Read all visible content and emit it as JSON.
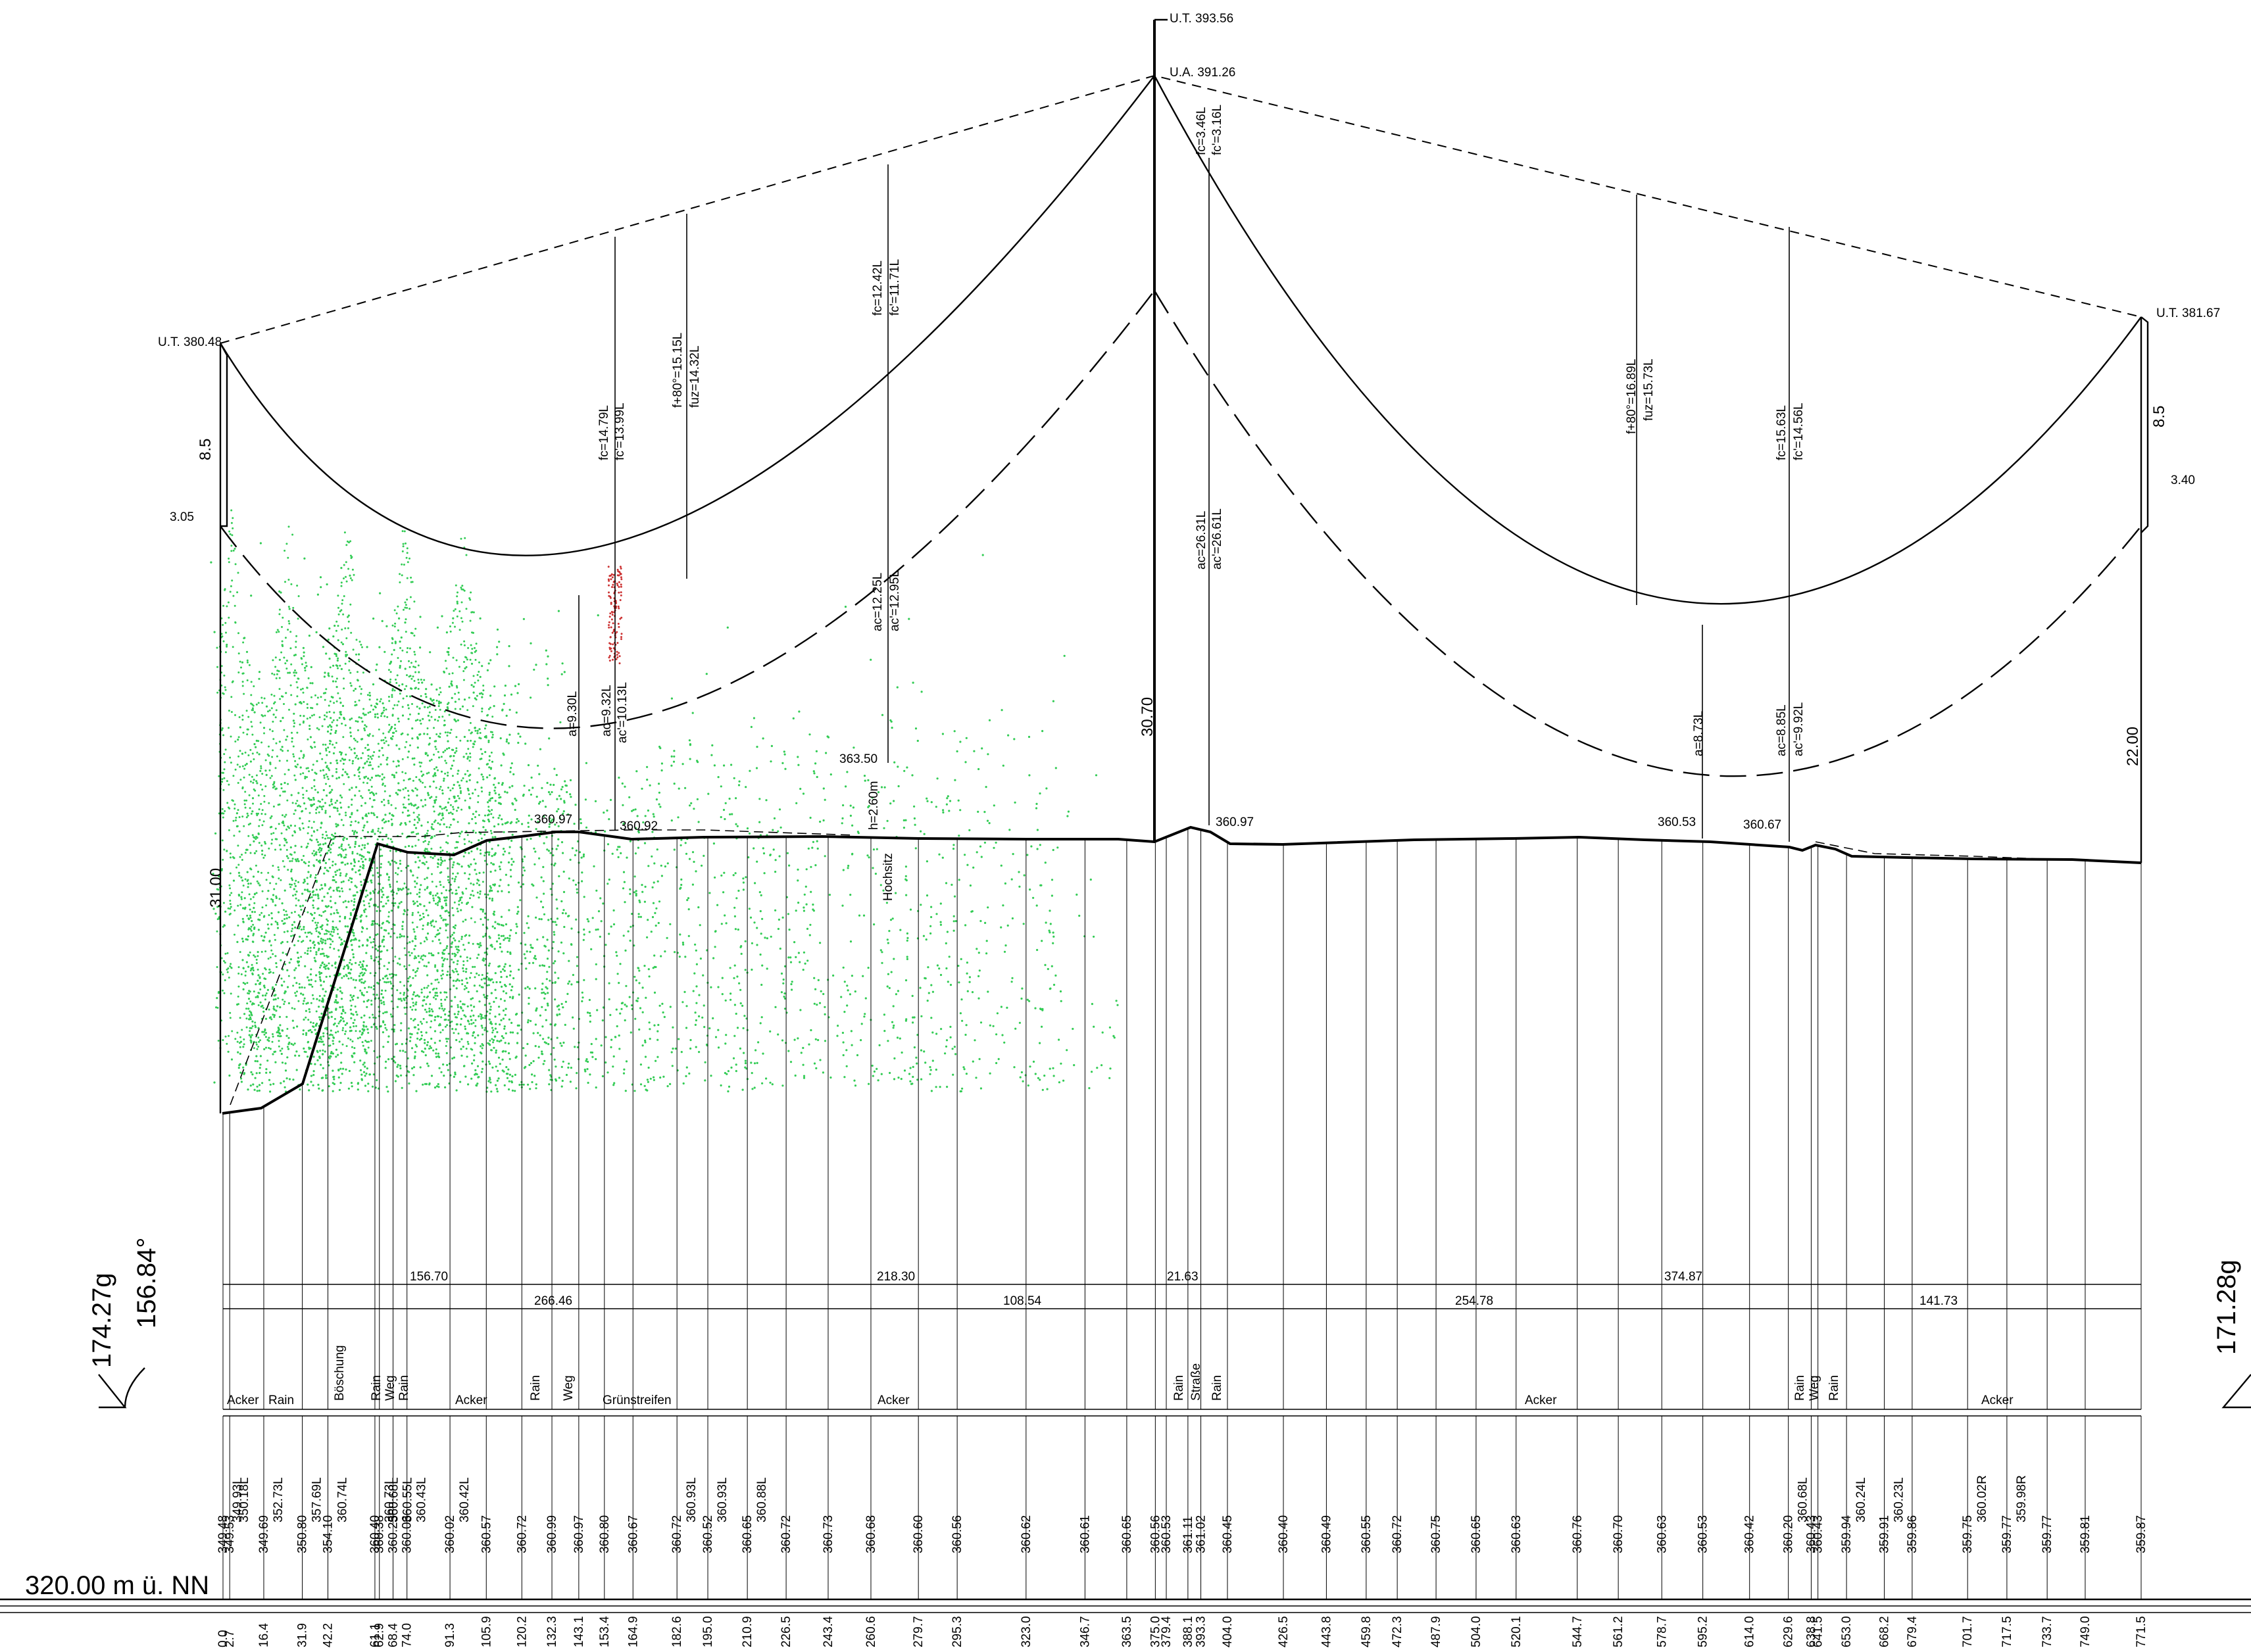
{
  "colors": {
    "vegetation": "#33cc55",
    "vegetation_tall": "#cc3333",
    "lines": "#000000"
  },
  "datum": "320.00 m ü. NN",
  "angles": {
    "left_g": "174.27g",
    "left_deg": "156.84°",
    "right_g": "171.28g"
  },
  "towers": {
    "left": {
      "ut": "U.T. 380.48",
      "crossarm": "8.5",
      "offset": "3.05",
      "height": "31.00"
    },
    "center": {
      "ut": "U.T. 393.56",
      "ua": "U.A. 391.26",
      "height": "30.70"
    },
    "right": {
      "ut": "U.T. 381.67",
      "crossarm": "8.5",
      "offset": "3.40",
      "height": "22.00"
    }
  },
  "sag_labels": {
    "left_span": [
      "fc=14.79L",
      "fc'=13.99L",
      "f+80°=15.15L",
      "fuz=14.32L",
      "fc=12.42L",
      "fc'=11.71L",
      "a=9.30L",
      "ac=9.32L",
      "ac'=10.13L",
      "ac=12.25L",
      "ac'=12.95L"
    ],
    "right_span": [
      "fc=3.46L",
      "fc'=3.16L",
      "ac=26.31L",
      "ac'=26.61L",
      "f+80°=16.89L",
      "fuz=15.73L",
      "fc=15.63L",
      "fc'=14.56L",
      "a=8.73L",
      "ac=8.85L",
      "ac'=9.92L"
    ]
  },
  "ground_labels": [
    "360.97",
    "360.92",
    "363.50",
    "h=2.60m",
    "Hochsitz",
    "360.97",
    "360.53",
    "360.67"
  ],
  "dimensions": {
    "row1": [
      "156.70",
      "218.30",
      "21.63",
      "374.87"
    ],
    "row2": [
      "266.46",
      "108.54",
      "254.78",
      "141.73"
    ]
  },
  "land_use": [
    "Acker",
    "Rain",
    "Böschung",
    "Rain",
    "Weg",
    "Rain",
    "Acker",
    "Rain",
    "Weg",
    "Grünstreifen",
    "Acker",
    "Rain",
    "Straße",
    "Rain",
    "Acker",
    "Rain",
    "Weg",
    "Rain",
    "Acker"
  ],
  "stations": [
    {
      "s": "0.0",
      "h": "349.48"
    },
    {
      "s": "2.7",
      "h": "349.53"
    },
    {
      "s": "16.4",
      "h": "349.69"
    },
    {
      "s": "31.9",
      "h": "350.80"
    },
    {
      "s": "42.2",
      "h": "354.10"
    },
    {
      "s": "61.1",
      "h": "360.40"
    },
    {
      "s": "62.9",
      "h": "360.38"
    },
    {
      "s": "68.4",
      "h": "360.25"
    },
    {
      "s": "74.0",
      "h": "360.06"
    },
    {
      "s": "91.3",
      "h": "360.02"
    },
    {
      "s": "105.9",
      "h": "360.57"
    },
    {
      "s": "120.2",
      "h": "360.72"
    },
    {
      "s": "132.3",
      "h": "360.99"
    },
    {
      "s": "143.1",
      "h": "360.97"
    },
    {
      "s": "153.4",
      "h": "360.80"
    },
    {
      "s": "164.9",
      "h": "360.67"
    },
    {
      "s": "182.6",
      "h": "360.72"
    },
    {
      "s": "195.0",
      "h": "360.52"
    },
    {
      "s": "210.9",
      "h": "360.65"
    },
    {
      "s": "226.5",
      "h": "360.72"
    },
    {
      "s": "243.4",
      "h": "360.73"
    },
    {
      "s": "260.6",
      "h": "360.68"
    },
    {
      "s": "279.7",
      "h": "360.60"
    },
    {
      "s": "295.3",
      "h": "360.56"
    },
    {
      "s": "323.0",
      "h": "360.62"
    },
    {
      "s": "346.7",
      "h": "360.61"
    },
    {
      "s": "363.5",
      "h": "360.65"
    },
    {
      "s": "375.0",
      "h": "360.56"
    },
    {
      "s": "379.4",
      "h": "360.53"
    },
    {
      "s": "388.1",
      "h": "361.11"
    },
    {
      "s": "393.3",
      "h": "361.02"
    },
    {
      "s": "404.0",
      "h": "360.45"
    },
    {
      "s": "426.5",
      "h": "360.40"
    },
    {
      "s": "443.8",
      "h": "360.49"
    },
    {
      "s": "459.8",
      "h": "360.55"
    },
    {
      "s": "472.3",
      "h": "360.72"
    },
    {
      "s": "487.9",
      "h": "360.75"
    },
    {
      "s": "504.0",
      "h": "360.65"
    },
    {
      "s": "520.1",
      "h": "360.63"
    },
    {
      "s": "544.7",
      "h": "360.76"
    },
    {
      "s": "561.2",
      "h": "360.70"
    },
    {
      "s": "578.7",
      "h": "360.63"
    },
    {
      "s": "595.2",
      "h": "360.53"
    },
    {
      "s": "614.0",
      "h": "360.42"
    },
    {
      "s": "629.6",
      "h": "360.20"
    },
    {
      "s": "638.8",
      "h": "360.43"
    },
    {
      "s": "641.5",
      "h": "360.43"
    },
    {
      "s": "653.0",
      "h": "359.94"
    },
    {
      "s": "668.2",
      "h": "359.91"
    },
    {
      "s": "679.4",
      "h": "359.86"
    },
    {
      "s": "701.7",
      "h": "359.75"
    },
    {
      "s": "717.5",
      "h": "359.77"
    },
    {
      "s": "733.7",
      "h": "359.77"
    },
    {
      "s": "749.0",
      "h": "359.81"
    },
    {
      "s": "771.5",
      "h": "359.87"
    }
  ],
  "side_heights": [
    "349.93L",
    "350.18L",
    "352.73L",
    "357.69L",
    "360.74L",
    "360.73L",
    "360.68L",
    "360.55L",
    "360.43L",
    "360.42L",
    "360.93L",
    "360.93L",
    "360.88L",
    "360.68L",
    "360.24L",
    "360.23L",
    "360.02R",
    "359.98R"
  ]
}
